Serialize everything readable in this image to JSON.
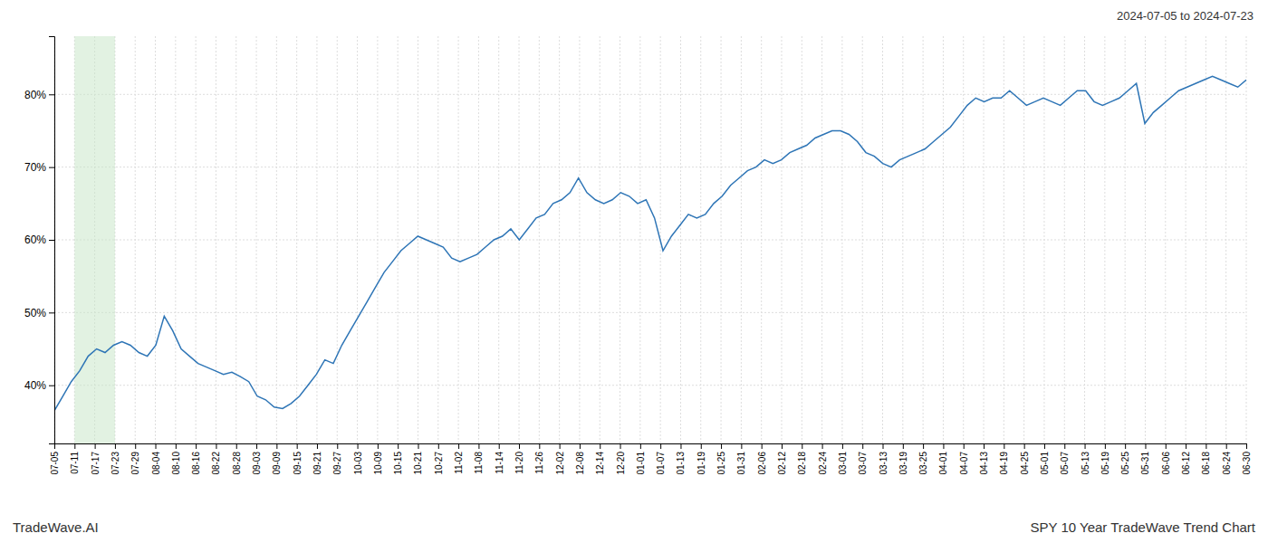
{
  "chart_data": {
    "type": "line",
    "title": "2024-07-05 to 2024-07-23",
    "annotations": [
      {
        "text": "TradeWave.AI"
      },
      {
        "text": "SPY 10 Year TradeWave Trend Chart"
      }
    ],
    "color": "#2e75b6",
    "grid": true,
    "spans": [
      {
        "x0": 2.3898,
        "x1": 7.1695,
        "color": "#c6e6c6"
      }
    ],
    "xlim": [
      0,
      141
    ],
    "xticks": [
      {
        "value": 0,
        "label": "07-05"
      },
      {
        "value": 2.3898,
        "label": "07-11"
      },
      {
        "value": 4.7797,
        "label": "07-17"
      },
      {
        "value": 7.1695,
        "label": "07-23"
      },
      {
        "value": 9.5593,
        "label": "07-29"
      },
      {
        "value": 11.9492,
        "label": "08-04"
      },
      {
        "value": 14.339,
        "label": "08-10"
      },
      {
        "value": 16.7288,
        "label": "08-16"
      },
      {
        "value": 19.1186,
        "label": "08-22"
      },
      {
        "value": 21.5085,
        "label": "08-28"
      },
      {
        "value": 23.8983,
        "label": "09-03"
      },
      {
        "value": 26.2881,
        "label": "09-09"
      },
      {
        "value": 28.678,
        "label": "09-15"
      },
      {
        "value": 31.0678,
        "label": "09-21"
      },
      {
        "value": 33.4576,
        "label": "09-27"
      },
      {
        "value": 35.8475,
        "label": "10-03"
      },
      {
        "value": 38.2373,
        "label": "10-09"
      },
      {
        "value": 40.6271,
        "label": "10-15"
      },
      {
        "value": 43.0169,
        "label": "10-21"
      },
      {
        "value": 45.4068,
        "label": "10-27"
      },
      {
        "value": 47.7966,
        "label": "11-02"
      },
      {
        "value": 50.1864,
        "label": "11-08"
      },
      {
        "value": 52.5763,
        "label": "11-14"
      },
      {
        "value": 54.9661,
        "label": "11-20"
      },
      {
        "value": 57.3559,
        "label": "11-26"
      },
      {
        "value": 59.7458,
        "label": "12-02"
      },
      {
        "value": 62.1356,
        "label": "12-08"
      },
      {
        "value": 64.5254,
        "label": "12-14"
      },
      {
        "value": 66.9153,
        "label": "12-20"
      },
      {
        "value": 69.3051,
        "label": "01-01"
      },
      {
        "value": 71.6949,
        "label": "01-07"
      },
      {
        "value": 74.0847,
        "label": "01-13"
      },
      {
        "value": 76.4746,
        "label": "01-19"
      },
      {
        "value": 78.8644,
        "label": "01-25"
      },
      {
        "value": 81.2542,
        "label": "01-31"
      },
      {
        "value": 83.6441,
        "label": "02-06"
      },
      {
        "value": 86.0339,
        "label": "02-12"
      },
      {
        "value": 88.4237,
        "label": "02-18"
      },
      {
        "value": 90.8136,
        "label": "02-24"
      },
      {
        "value": 93.2034,
        "label": "03-01"
      },
      {
        "value": 95.5932,
        "label": "03-07"
      },
      {
        "value": 97.9831,
        "label": "03-13"
      },
      {
        "value": 100.3729,
        "label": "03-19"
      },
      {
        "value": 102.7627,
        "label": "03-25"
      },
      {
        "value": 105.1525,
        "label": "04-01"
      },
      {
        "value": 107.5424,
        "label": "04-07"
      },
      {
        "value": 109.9322,
        "label": "04-13"
      },
      {
        "value": 112.322,
        "label": "04-19"
      },
      {
        "value": 114.7119,
        "label": "04-25"
      },
      {
        "value": 117.1017,
        "label": "05-01"
      },
      {
        "value": 119.4915,
        "label": "05-07"
      },
      {
        "value": 121.8814,
        "label": "05-13"
      },
      {
        "value": 124.2712,
        "label": "05-19"
      },
      {
        "value": 126.661,
        "label": "05-25"
      },
      {
        "value": 129.0508,
        "label": "05-31"
      },
      {
        "value": 131.4407,
        "label": "06-06"
      },
      {
        "value": 133.8305,
        "label": "06-12"
      },
      {
        "value": 136.2203,
        "label": "06-18"
      },
      {
        "value": 138.6102,
        "label": "06-24"
      },
      {
        "value": 141,
        "label": "06-30"
      }
    ],
    "ylim": [
      32,
      88
    ],
    "yticks": [
      {
        "value": 40,
        "label": "40%"
      },
      {
        "value": 50,
        "label": "50%"
      },
      {
        "value": 60,
        "label": "60%"
      },
      {
        "value": 70,
        "label": "70%"
      },
      {
        "value": 80,
        "label": "80%"
      }
    ],
    "values": [
      36.5,
      38.5,
      40.5,
      42.0,
      44.0,
      45.0,
      44.5,
      45.5,
      46.0,
      45.5,
      44.5,
      44.0,
      45.5,
      49.5,
      47.5,
      45.0,
      44.0,
      43.0,
      42.5,
      42.0,
      41.5,
      41.8,
      41.2,
      40.5,
      38.5,
      38.0,
      37.0,
      36.8,
      37.5,
      38.5,
      40.0,
      41.5,
      43.5,
      43.0,
      45.5,
      47.5,
      49.5,
      51.5,
      53.5,
      55.5,
      57.0,
      58.5,
      59.5,
      60.5,
      60.0,
      59.5,
      59.0,
      57.5,
      57.0,
      57.5,
      58.0,
      59.0,
      60.0,
      60.5,
      61.5,
      60.0,
      61.5,
      63.0,
      63.5,
      65.0,
      65.5,
      66.5,
      68.5,
      66.5,
      65.5,
      65.0,
      65.5,
      66.5,
      66.0,
      65.0,
      65.5,
      63.0,
      58.5,
      60.5,
      62.0,
      63.5,
      63.0,
      63.5,
      65.0,
      66.0,
      67.5,
      68.5,
      69.5,
      70.0,
      71.0,
      70.5,
      71.0,
      72.0,
      72.5,
      73.0,
      74.0,
      74.5,
      75.0,
      75.0,
      74.5,
      73.5,
      72.0,
      71.5,
      70.5,
      70.0,
      71.0,
      71.5,
      72.0,
      72.5,
      73.5,
      74.5,
      75.5,
      77.0,
      78.5,
      79.5,
      79.0,
      79.5,
      79.5,
      80.5,
      79.5,
      78.5,
      79.0,
      79.5,
      79.0,
      78.5,
      79.5,
      80.5,
      80.5,
      79.0,
      78.5,
      79.0,
      79.5,
      80.5,
      81.5,
      76.0,
      77.5,
      78.5,
      79.5,
      80.5,
      81.0,
      81.5,
      82.0,
      82.5,
      82.0,
      81.5,
      81.0,
      82.0
    ]
  }
}
